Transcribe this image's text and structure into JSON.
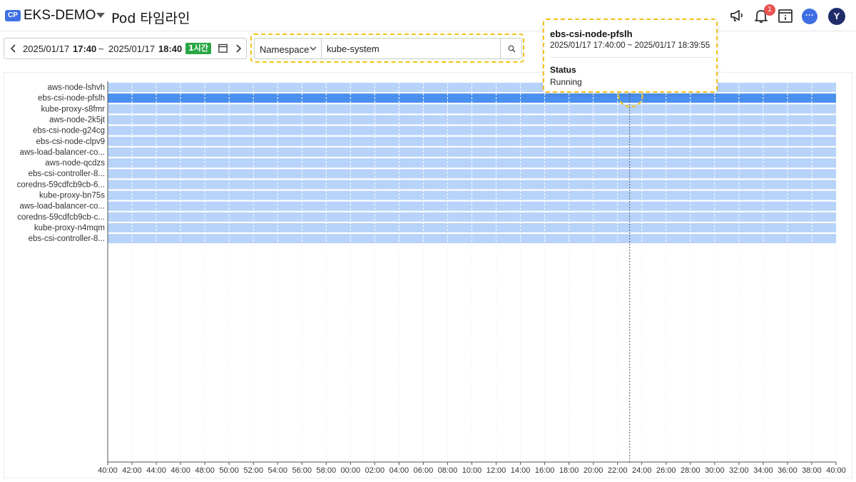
{
  "header": {
    "badge": "CP",
    "project": "EKS-DEMO",
    "title": "Pod 타임라인",
    "notification_count": "1",
    "avatar_initial": "Y",
    "icons": [
      "megaphone-icon",
      "bell-icon",
      "info-panel-icon",
      "chat-icon"
    ]
  },
  "time_picker": {
    "start_date": "2025/01/17",
    "start_time": "17:40",
    "separator": "~",
    "end_date": "2025/01/17",
    "end_time": "18:40",
    "range_badge": "1시간"
  },
  "search": {
    "filter_label": "Namespace",
    "value": "kube-system"
  },
  "timeline": {
    "pods": [
      "aws-node-lshvh",
      "ebs-csi-node-pfslh",
      "kube-proxy-s8fmr",
      "aws-node-2k5jt",
      "ebs-csi-node-g24cg",
      "ebs-csi-node-clpv9",
      "aws-load-balancer-co...",
      "aws-node-qcdzs",
      "ebs-csi-controller-8...",
      "coredns-59cdfcb9cb-6...",
      "kube-proxy-bn75s",
      "aws-load-balancer-co...",
      "coredns-59cdfcb9cb-c...",
      "kube-proxy-n4mqm",
      "ebs-csi-controller-8..."
    ],
    "selected_index": 1,
    "x_ticks": [
      "40:00",
      "42:00",
      "44:00",
      "46:00",
      "48:00",
      "50:00",
      "52:00",
      "54:00",
      "56:00",
      "58:00",
      "00:00",
      "02:00",
      "04:00",
      "06:00",
      "08:00",
      "10:00",
      "12:00",
      "14:00",
      "16:00",
      "18:00",
      "20:00",
      "22:00",
      "24:00",
      "26:00",
      "28:00",
      "30:00",
      "32:00",
      "34:00",
      "36:00",
      "38:00",
      "40:00"
    ],
    "cursor_minute": 43,
    "colors": {
      "bar": "#b7d3fa",
      "bar_selected": "#4a90ee",
      "grid": "#ffffff",
      "axis": "#555555"
    }
  },
  "tooltip": {
    "pod_name": "ebs-csi-node-pfslh",
    "time_range": "2025/01/17 17:40:00 ~ 2025/01/17 18:39:55",
    "status_label": "Status",
    "status_value": "Running"
  }
}
